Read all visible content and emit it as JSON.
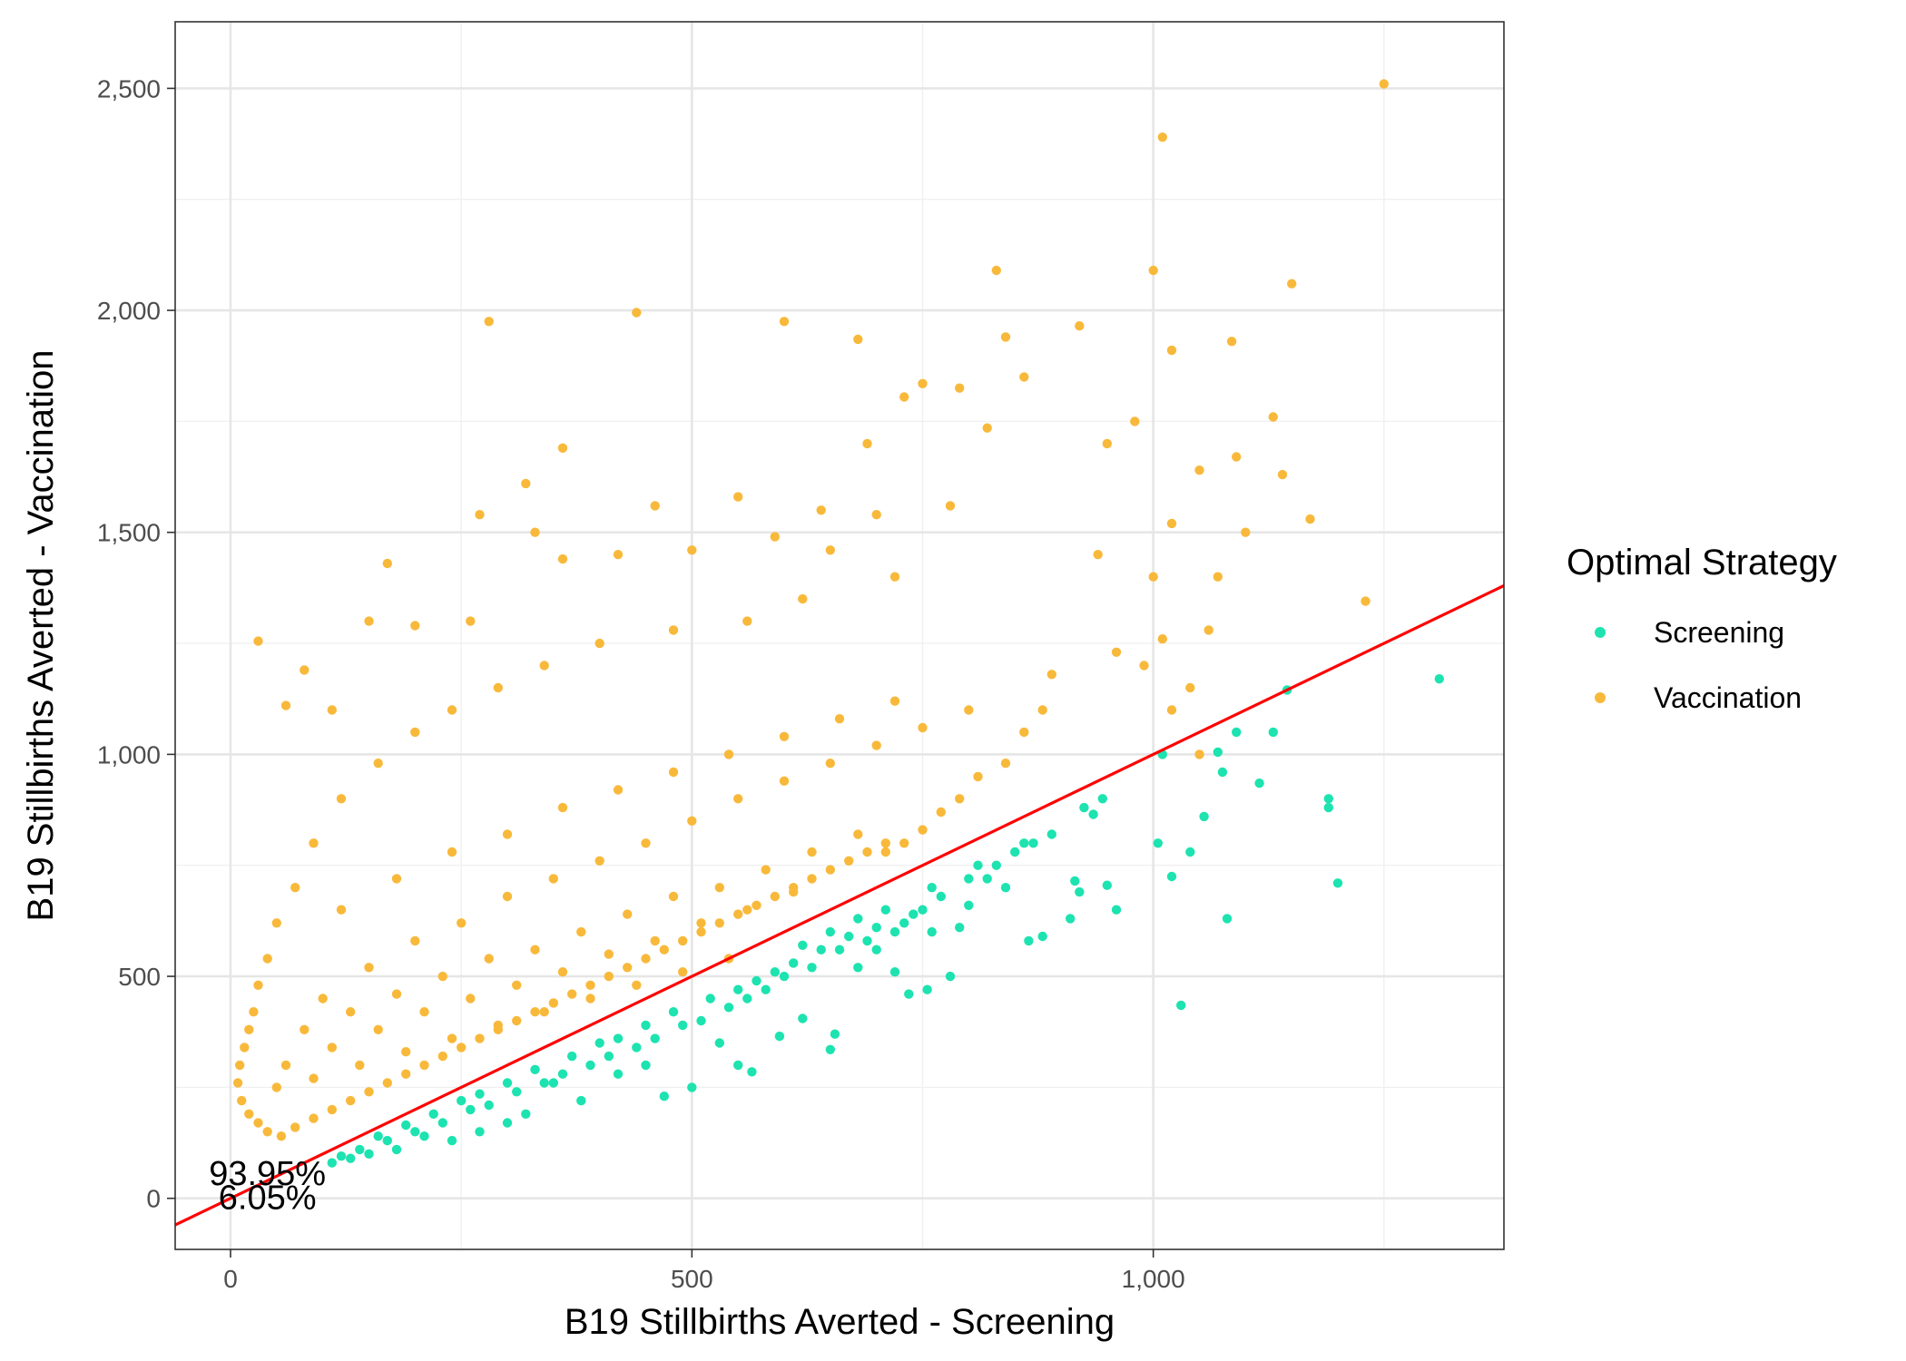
{
  "chart_data": {
    "type": "scatter",
    "xlabel": "B19 Stillbirths Averted - Screening",
    "ylabel": "B19 Stillbirths Averted - Vaccination",
    "xlim": [
      -60,
      1380
    ],
    "ylim": [
      -115,
      2650
    ],
    "x_ticks": [
      0,
      500,
      1000
    ],
    "x_tick_labels": [
      "0",
      "500",
      "1,000"
    ],
    "y_ticks": [
      0,
      500,
      1000,
      1500,
      2000,
      2500
    ],
    "y_tick_labels": [
      "0",
      "500",
      "1,000",
      "1,500",
      "2,000",
      "2,500"
    ],
    "grid": true,
    "legend": {
      "title": "Optimal Strategy",
      "position": "right",
      "entries": [
        {
          "label": "Screening",
          "color": "#1DE3B0"
        },
        {
          "label": "Vaccination",
          "color": "#F8B93B"
        }
      ]
    },
    "reference_line": {
      "slope": 1,
      "intercept": 0,
      "color": "#FF0000"
    },
    "annotations": [
      {
        "text": "93.95%",
        "x": 40,
        "y": 55
      },
      {
        "text": "6.05%",
        "x": 40,
        "y": 0
      }
    ],
    "series": [
      {
        "name": "Screening",
        "color": "#1DE3B0",
        "points": [
          [
            1310,
            1170
          ],
          [
            1200,
            710
          ],
          [
            1190,
            900
          ],
          [
            1190,
            880
          ],
          [
            1145,
            1145
          ],
          [
            1130,
            1050
          ],
          [
            1115,
            935
          ],
          [
            1090,
            1050
          ],
          [
            1080,
            630
          ],
          [
            1075,
            960
          ],
          [
            1070,
            1005
          ],
          [
            1055,
            860
          ],
          [
            1040,
            780
          ],
          [
            1030,
            435
          ],
          [
            1020,
            725
          ],
          [
            1010,
            1000
          ],
          [
            1005,
            800
          ],
          [
            960,
            650
          ],
          [
            950,
            705
          ],
          [
            945,
            900
          ],
          [
            935,
            865
          ],
          [
            925,
            880
          ],
          [
            920,
            690
          ],
          [
            915,
            715
          ],
          [
            910,
            630
          ],
          [
            880,
            590
          ],
          [
            865,
            580
          ],
          [
            860,
            800
          ],
          [
            840,
            700
          ],
          [
            820,
            720
          ],
          [
            810,
            750
          ],
          [
            800,
            660
          ],
          [
            790,
            610
          ],
          [
            780,
            500
          ],
          [
            760,
            600
          ],
          [
            755,
            470
          ],
          [
            735,
            460
          ],
          [
            720,
            510
          ],
          [
            700,
            560
          ],
          [
            680,
            520
          ],
          [
            655,
            370
          ],
          [
            650,
            335
          ],
          [
            620,
            405
          ],
          [
            595,
            365
          ],
          [
            565,
            285
          ],
          [
            550,
            300
          ],
          [
            530,
            350
          ],
          [
            500,
            250
          ],
          [
            470,
            230
          ],
          [
            450,
            300
          ],
          [
            420,
            280
          ],
          [
            380,
            220
          ],
          [
            350,
            260
          ],
          [
            320,
            190
          ],
          [
            300,
            170
          ],
          [
            270,
            150
          ],
          [
            240,
            130
          ],
          [
            210,
            140
          ],
          [
            180,
            110
          ],
          [
            150,
            100
          ],
          [
            130,
            90
          ],
          [
            110,
            80
          ],
          [
            720,
            600
          ],
          [
            740,
            640
          ],
          [
            690,
            580
          ],
          [
            660,
            560
          ],
          [
            630,
            520
          ],
          [
            600,
            500
          ],
          [
            580,
            470
          ],
          [
            560,
            450
          ],
          [
            540,
            430
          ],
          [
            510,
            400
          ],
          [
            490,
            390
          ],
          [
            460,
            360
          ],
          [
            440,
            340
          ],
          [
            410,
            320
          ],
          [
            390,
            300
          ],
          [
            360,
            280
          ],
          [
            340,
            260
          ],
          [
            310,
            240
          ],
          [
            280,
            210
          ],
          [
            260,
            200
          ],
          [
            230,
            170
          ],
          [
            200,
            150
          ],
          [
            170,
            130
          ],
          [
            140,
            110
          ],
          [
            120,
            95
          ],
          [
            770,
            680
          ],
          [
            750,
            650
          ],
          [
            730,
            620
          ],
          [
            700,
            610
          ],
          [
            670,
            590
          ],
          [
            640,
            560
          ],
          [
            610,
            530
          ],
          [
            590,
            510
          ],
          [
            570,
            490
          ],
          [
            550,
            470
          ],
          [
            520,
            450
          ],
          [
            480,
            420
          ],
          [
            450,
            390
          ],
          [
            420,
            360
          ],
          [
            400,
            350
          ],
          [
            370,
            320
          ],
          [
            330,
            290
          ],
          [
            300,
            260
          ],
          [
            270,
            235
          ],
          [
            250,
            220
          ],
          [
            220,
            190
          ],
          [
            190,
            165
          ],
          [
            160,
            140
          ],
          [
            800,
            720
          ],
          [
            830,
            750
          ],
          [
            850,
            780
          ],
          [
            870,
            800
          ],
          [
            890,
            820
          ],
          [
            760,
            700
          ],
          [
            710,
            650
          ],
          [
            680,
            630
          ],
          [
            650,
            600
          ],
          [
            620,
            570
          ]
        ]
      },
      {
        "name": "Vaccination",
        "color": "#F8B93B",
        "points": [
          [
            1250,
            2510
          ],
          [
            1010,
            2390
          ],
          [
            1000,
            2090
          ],
          [
            830,
            2090
          ],
          [
            1150,
            2060
          ],
          [
            440,
            1995
          ],
          [
            600,
            1975
          ],
          [
            280,
            1975
          ],
          [
            680,
            1935
          ],
          [
            840,
            1940
          ],
          [
            920,
            1965
          ],
          [
            1085,
            1930
          ],
          [
            1020,
            1910
          ],
          [
            860,
            1850
          ],
          [
            790,
            1825
          ],
          [
            750,
            1835
          ],
          [
            730,
            1805
          ],
          [
            820,
            1735
          ],
          [
            1130,
            1760
          ],
          [
            980,
            1750
          ],
          [
            950,
            1700
          ],
          [
            690,
            1700
          ],
          [
            360,
            1690
          ],
          [
            460,
            1560
          ],
          [
            550,
            1580
          ],
          [
            320,
            1610
          ],
          [
            270,
            1540
          ],
          [
            1170,
            1530
          ],
          [
            1090,
            1670
          ],
          [
            1050,
            1640
          ],
          [
            1140,
            1630
          ],
          [
            1100,
            1500
          ],
          [
            1020,
            1520
          ],
          [
            1070,
            1400
          ],
          [
            1000,
            1400
          ],
          [
            940,
            1450
          ],
          [
            990,
            1200
          ],
          [
            1060,
            1280
          ],
          [
            1010,
            1260
          ],
          [
            960,
            1230
          ],
          [
            1230,
            1345
          ],
          [
            1050,
            1000
          ],
          [
            1040,
            1150
          ],
          [
            1020,
            1100
          ],
          [
            890,
            1180
          ],
          [
            880,
            1100
          ],
          [
            860,
            1050
          ],
          [
            840,
            980
          ],
          [
            810,
            950
          ],
          [
            790,
            900
          ],
          [
            770,
            870
          ],
          [
            750,
            830
          ],
          [
            730,
            800
          ],
          [
            710,
            780
          ],
          [
            30,
            1255
          ],
          [
            60,
            1110
          ],
          [
            80,
            1190
          ],
          [
            110,
            1100
          ],
          [
            170,
            1430
          ],
          [
            150,
            1300
          ],
          [
            200,
            1290
          ],
          [
            260,
            1300
          ],
          [
            330,
            1500
          ],
          [
            360,
            1440
          ],
          [
            420,
            1450
          ],
          [
            500,
            1460
          ],
          [
            590,
            1490
          ],
          [
            640,
            1550
          ],
          [
            700,
            1540
          ],
          [
            780,
            1560
          ],
          [
            650,
            1460
          ],
          [
            720,
            1400
          ],
          [
            620,
            1350
          ],
          [
            560,
            1300
          ],
          [
            480,
            1280
          ],
          [
            400,
            1250
          ],
          [
            340,
            1200
          ],
          [
            290,
            1150
          ],
          [
            240,
            1100
          ],
          [
            200,
            1050
          ],
          [
            160,
            980
          ],
          [
            120,
            900
          ],
          [
            90,
            800
          ],
          [
            70,
            700
          ],
          [
            50,
            620
          ],
          [
            40,
            540
          ],
          [
            30,
            480
          ],
          [
            25,
            420
          ],
          [
            20,
            380
          ],
          [
            15,
            340
          ],
          [
            10,
            300
          ],
          [
            8,
            260
          ],
          [
            12,
            220
          ],
          [
            20,
            190
          ],
          [
            30,
            170
          ],
          [
            40,
            150
          ],
          [
            55,
            140
          ],
          [
            70,
            160
          ],
          [
            90,
            180
          ],
          [
            110,
            200
          ],
          [
            130,
            220
          ],
          [
            150,
            240
          ],
          [
            170,
            260
          ],
          [
            190,
            280
          ],
          [
            210,
            300
          ],
          [
            230,
            320
          ],
          [
            250,
            340
          ],
          [
            270,
            360
          ],
          [
            290,
            380
          ],
          [
            310,
            400
          ],
          [
            330,
            420
          ],
          [
            350,
            440
          ],
          [
            370,
            460
          ],
          [
            390,
            480
          ],
          [
            410,
            500
          ],
          [
            430,
            520
          ],
          [
            450,
            540
          ],
          [
            470,
            560
          ],
          [
            490,
            580
          ],
          [
            510,
            600
          ],
          [
            530,
            620
          ],
          [
            550,
            640
          ],
          [
            570,
            660
          ],
          [
            590,
            680
          ],
          [
            610,
            700
          ],
          [
            630,
            720
          ],
          [
            650,
            740
          ],
          [
            670,
            760
          ],
          [
            690,
            780
          ],
          [
            710,
            800
          ],
          [
            100,
            450
          ],
          [
            150,
            520
          ],
          [
            200,
            580
          ],
          [
            250,
            620
          ],
          [
            300,
            680
          ],
          [
            350,
            720
          ],
          [
            400,
            760
          ],
          [
            450,
            800
          ],
          [
            500,
            850
          ],
          [
            550,
            900
          ],
          [
            600,
            940
          ],
          [
            650,
            980
          ],
          [
            700,
            1020
          ],
          [
            750,
            1060
          ],
          [
            800,
            1100
          ],
          [
            120,
            650
          ],
          [
            180,
            720
          ],
          [
            240,
            780
          ],
          [
            300,
            820
          ],
          [
            360,
            880
          ],
          [
            420,
            920
          ],
          [
            480,
            960
          ],
          [
            540,
            1000
          ],
          [
            600,
            1040
          ],
          [
            660,
            1080
          ],
          [
            720,
            1120
          ],
          [
            80,
            380
          ],
          [
            130,
            420
          ],
          [
            180,
            460
          ],
          [
            230,
            500
          ],
          [
            280,
            540
          ],
          [
            330,
            560
          ],
          [
            380,
            600
          ],
          [
            430,
            640
          ],
          [
            480,
            680
          ],
          [
            530,
            700
          ],
          [
            580,
            740
          ],
          [
            630,
            780
          ],
          [
            680,
            820
          ],
          [
            60,
            300
          ],
          [
            110,
            340
          ],
          [
            160,
            380
          ],
          [
            210,
            420
          ],
          [
            260,
            450
          ],
          [
            310,
            480
          ],
          [
            360,
            510
          ],
          [
            410,
            550
          ],
          [
            460,
            580
          ],
          [
            510,
            620
          ],
          [
            560,
            650
          ],
          [
            610,
            690
          ],
          [
            50,
            250
          ],
          [
            90,
            270
          ],
          [
            140,
            300
          ],
          [
            190,
            330
          ],
          [
            240,
            360
          ],
          [
            290,
            390
          ],
          [
            340,
            420
          ],
          [
            390,
            450
          ],
          [
            440,
            480
          ],
          [
            490,
            510
          ],
          [
            540,
            540
          ]
        ]
      }
    ]
  }
}
